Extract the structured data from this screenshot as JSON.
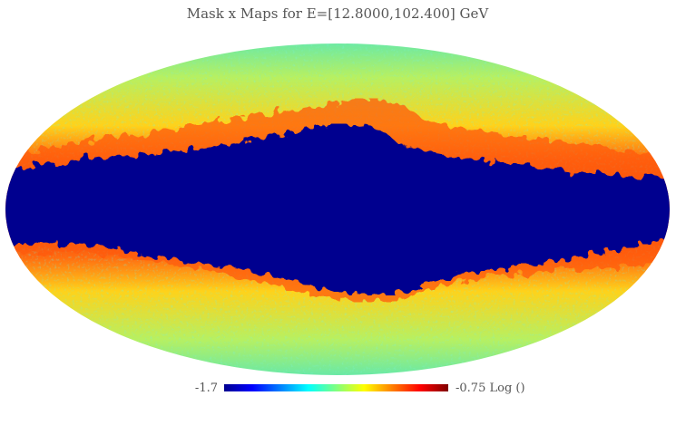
{
  "title": "Mask x Maps for E=[12.8000,102.400] GeV",
  "colorbar": {
    "min": -1.7,
    "max": -0.75,
    "unit": "Log ()"
  }
}
